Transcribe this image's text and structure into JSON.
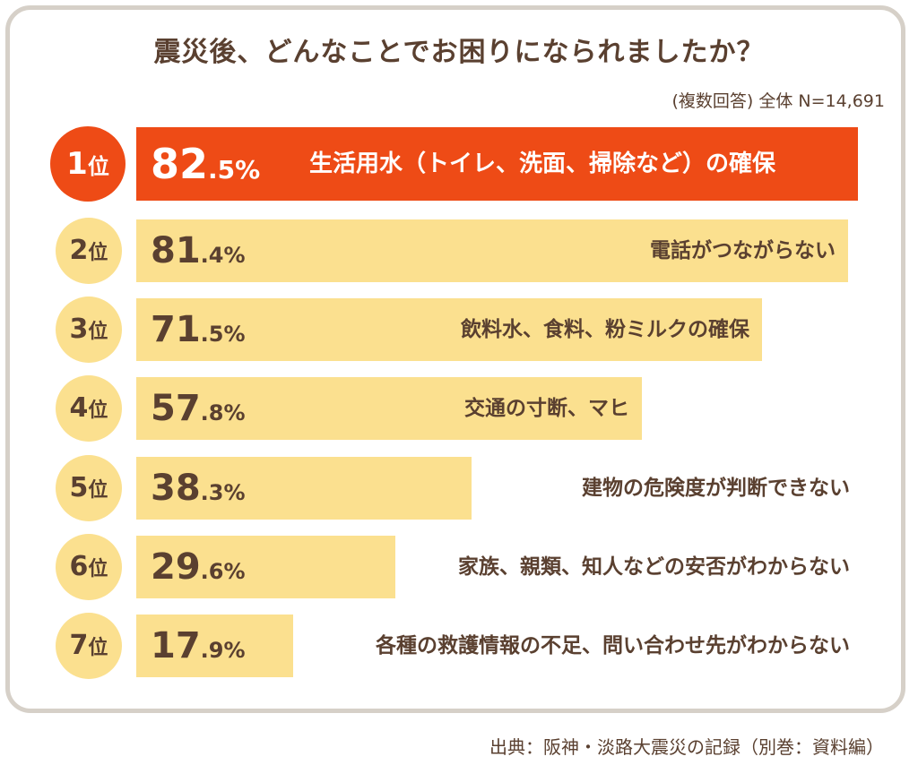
{
  "title": "震災後、どんなことでお困りになられましたか？",
  "note": "(複数回答) 全体 N=14,691",
  "source": "出典：阪神・淡路大震災の記録（別巻：資料編）",
  "rank_unit": "位",
  "colors": {
    "first": "#ee4b16",
    "bar": "#fbe08f",
    "text": "#5a4030",
    "frame": "#d6d0c8"
  },
  "chart_data": {
    "type": "bar",
    "orientation": "horizontal",
    "categories": [
      "生活用水（トイレ、洗面、掃除など）の確保",
      "電話がつながらない",
      "飲料水、食料、粉ミルクの確保",
      "交通の寸断、マヒ",
      "建物の危険度が判断できない",
      "家族、親類、知人などの安否がわからない",
      "各種の救護情報の不足、問い合わせ先がわからない"
    ],
    "values": [
      82.5,
      81.4,
      71.5,
      57.8,
      38.3,
      29.6,
      17.9
    ],
    "ranks": [
      "1",
      "2",
      "3",
      "4",
      "5",
      "6",
      "7"
    ],
    "pct_int": [
      "82",
      "81",
      "71",
      "57",
      "38",
      "29",
      "17"
    ],
    "pct_dec": [
      ".5%",
      ".4%",
      ".5%",
      ".8%",
      ".3%",
      ".6%",
      ".9%"
    ],
    "unit": "%",
    "xlim": [
      0,
      100
    ]
  }
}
